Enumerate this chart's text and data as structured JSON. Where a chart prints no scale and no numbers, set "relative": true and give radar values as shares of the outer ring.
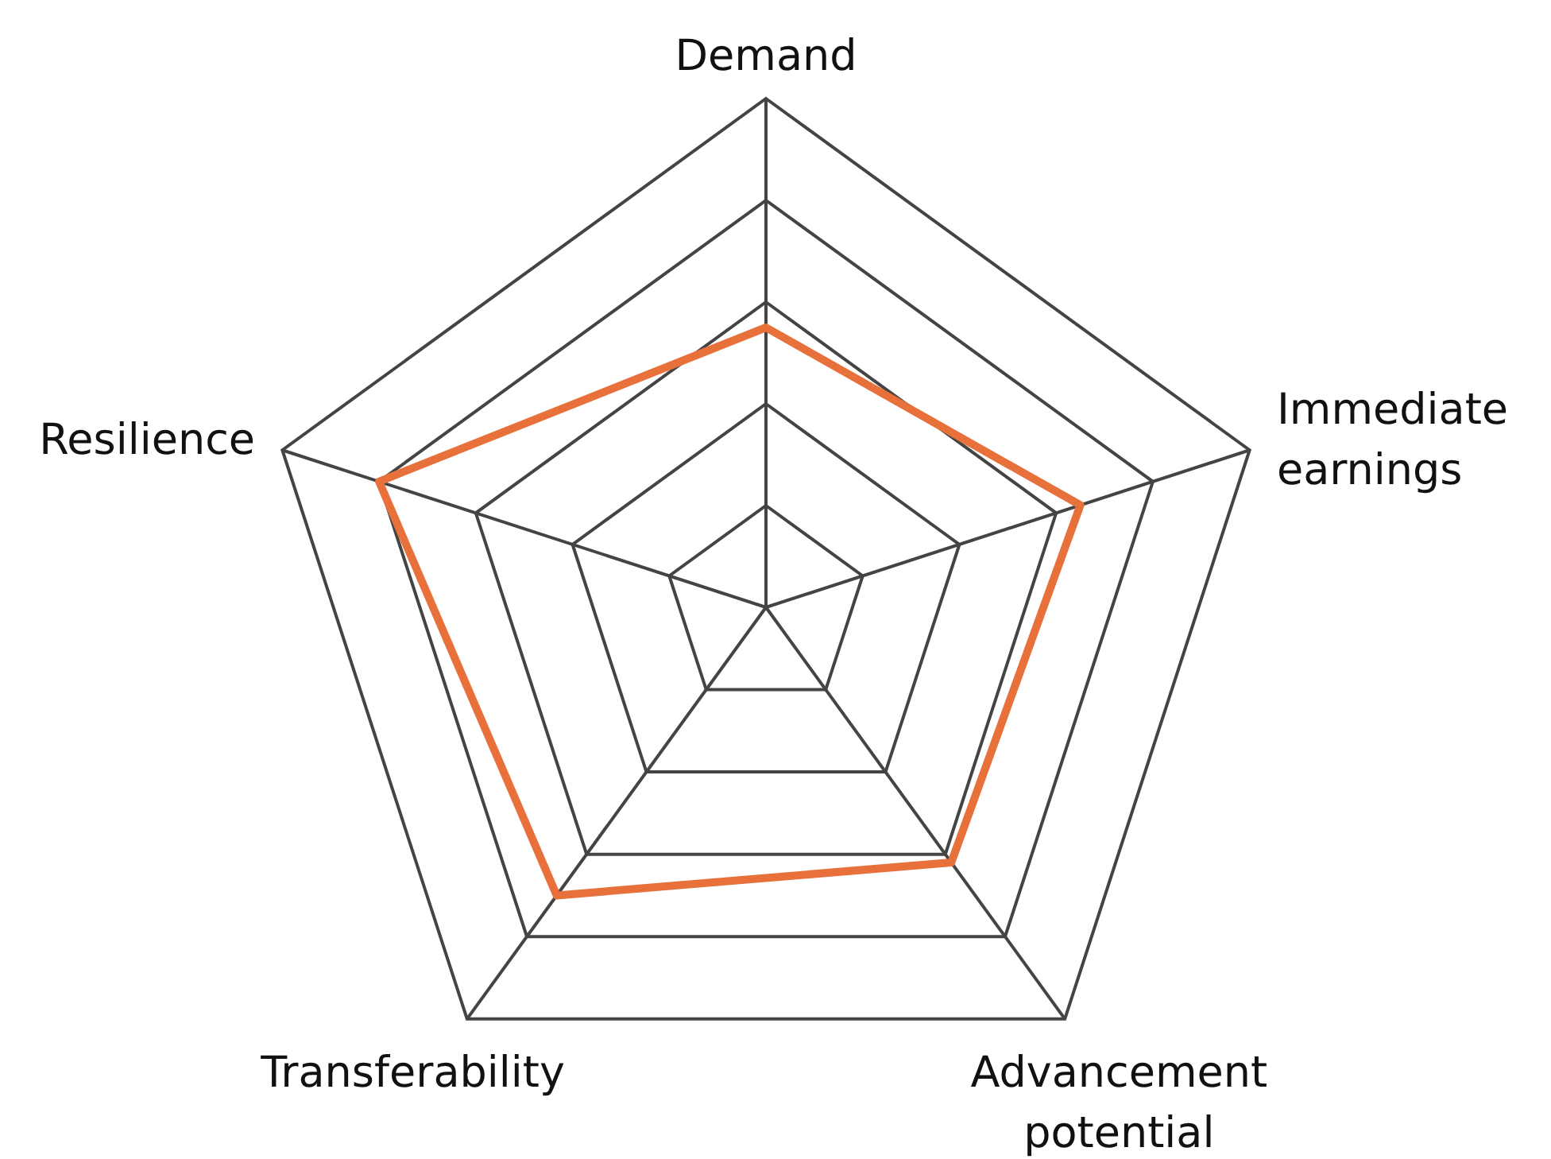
{
  "chart_data": {
    "type": "radar",
    "relative": true,
    "categories": [
      "Demand",
      "Immediate earnings",
      "Advancement potential",
      "Transferability",
      "Resilience"
    ],
    "series": [
      {
        "color": "#e8703a",
        "values": [
          0.55,
          0.65,
          0.62,
          0.7,
          0.8
        ]
      }
    ]
  }
}
